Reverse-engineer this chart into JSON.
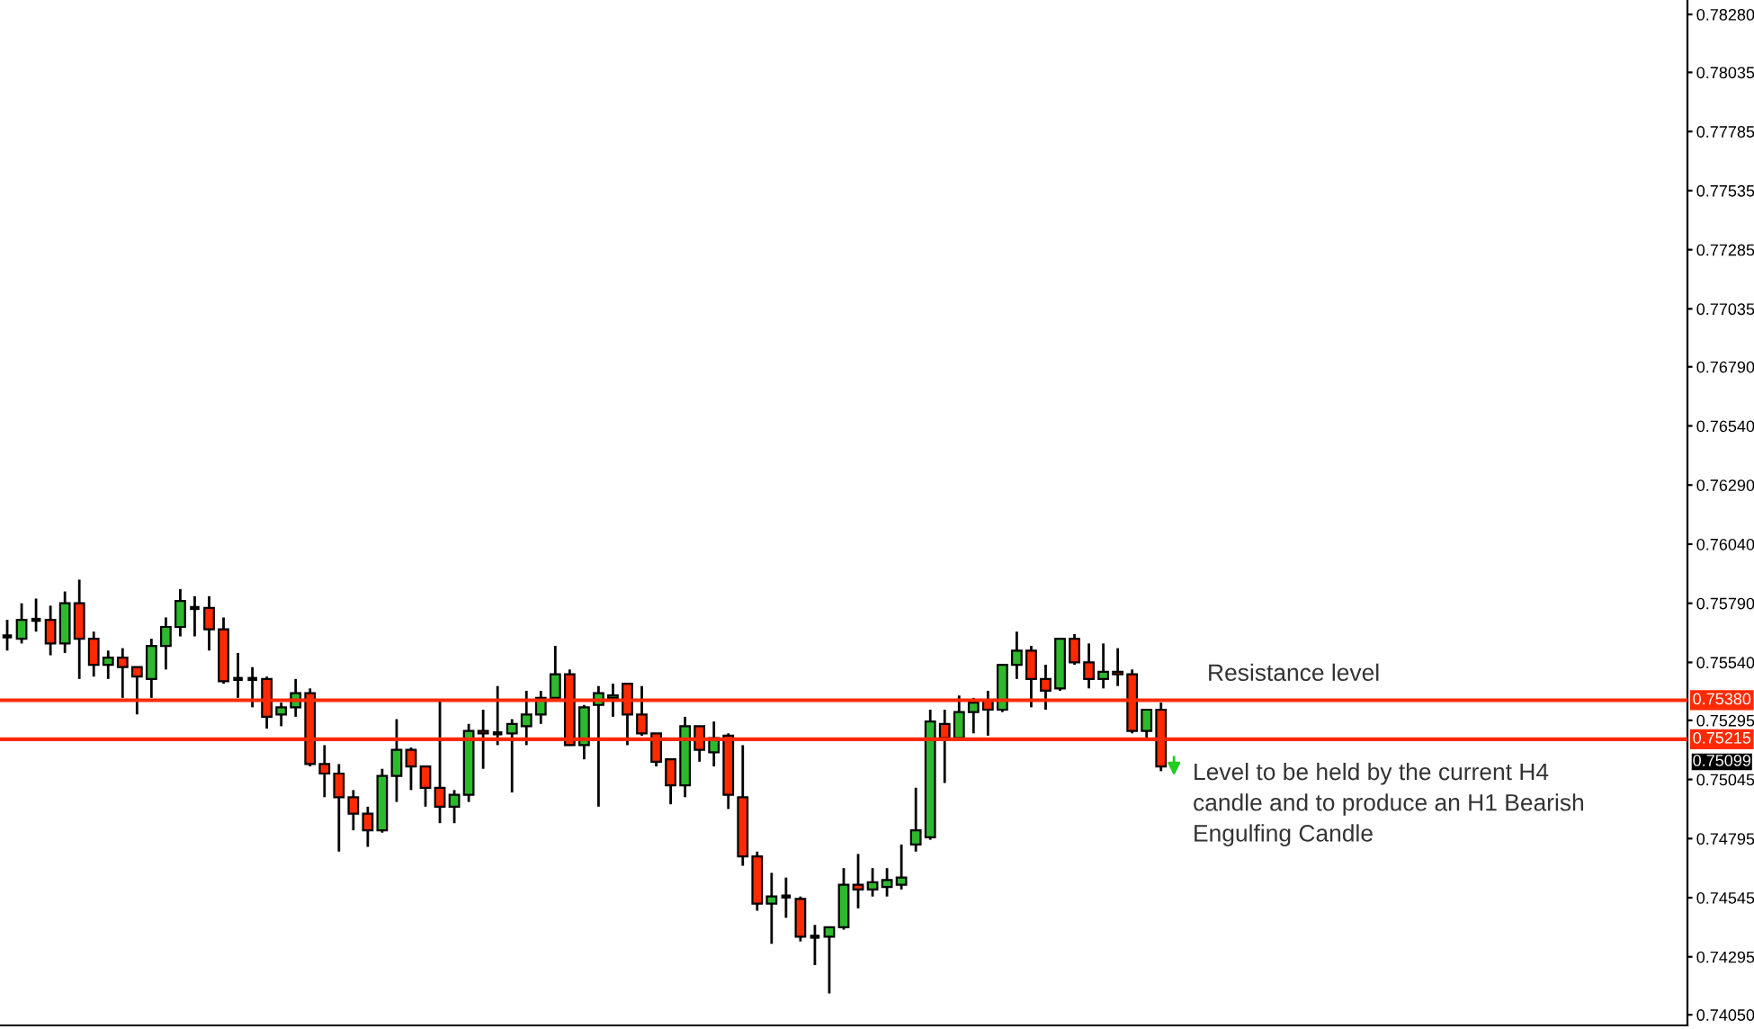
{
  "chart_data": {
    "type": "candlestick",
    "categories": [
      null,
      null,
      null,
      null,
      null,
      null,
      null,
      null,
      null,
      null,
      null,
      null,
      null,
      null,
      null,
      null,
      null,
      null,
      null,
      null,
      null,
      null,
      null,
      null,
      null,
      null,
      null,
      null,
      null,
      null,
      null,
      null,
      null,
      null,
      null,
      null,
      null,
      null,
      null,
      null,
      null,
      null,
      null,
      null,
      null,
      null,
      null,
      null,
      null,
      null,
      null,
      null,
      null,
      null,
      null,
      null,
      null,
      null,
      null,
      null,
      null,
      null,
      null,
      null,
      null,
      null,
      null,
      null,
      null,
      null,
      null,
      null,
      null,
      null,
      null,
      null,
      null,
      null,
      null,
      null,
      null,
      null,
      null,
      null,
      null,
      null,
      null,
      null,
      null,
      null,
      null,
      null,
      null,
      null,
      null,
      null,
      null,
      null,
      null,
      null,
      null,
      null,
      null,
      null,
      null,
      null,
      null,
      null,
      null,
      null,
      null,
      null,
      null,
      null,
      null,
      null,
      null
    ],
    "ohlc": [
      [
        0.7565,
        0.7572,
        0.7559,
        0.7565
      ],
      [
        0.7564,
        0.7579,
        0.7562,
        0.7572
      ],
      [
        0.7572,
        0.7581,
        0.7567,
        0.7572
      ],
      [
        0.7572,
        0.7578,
        0.7557,
        0.7562
      ],
      [
        0.7562,
        0.7584,
        0.7558,
        0.7579
      ],
      [
        0.7579,
        0.7589,
        0.7547,
        0.7564
      ],
      [
        0.7564,
        0.7567,
        0.7548,
        0.7553
      ],
      [
        0.7553,
        0.7559,
        0.7547,
        0.7556
      ],
      [
        0.7556,
        0.756,
        0.7539,
        0.7552
      ],
      [
        0.7552,
        0.7552,
        0.7532,
        0.7548
      ],
      [
        0.7547,
        0.7564,
        0.7539,
        0.7561
      ],
      [
        0.7561,
        0.7573,
        0.7551,
        0.7569
      ],
      [
        0.7569,
        0.7585,
        0.7565,
        0.758
      ],
      [
        0.7577,
        0.7582,
        0.7565,
        0.7577
      ],
      [
        0.7577,
        0.7582,
        0.7559,
        0.7568
      ],
      [
        0.7568,
        0.7573,
        0.7545,
        0.7546
      ],
      [
        0.7547,
        0.7558,
        0.7539,
        0.7547
      ],
      [
        0.7547,
        0.7552,
        0.7535,
        0.7547
      ],
      [
        0.7547,
        0.7548,
        0.7526,
        0.7531
      ],
      [
        0.7532,
        0.7537,
        0.7527,
        0.7535
      ],
      [
        0.7535,
        0.7547,
        0.7531,
        0.7541
      ],
      [
        0.7541,
        0.7543,
        0.751,
        0.7511
      ],
      [
        0.7511,
        0.7519,
        0.7497,
        0.7507
      ],
      [
        0.7507,
        0.7511,
        0.7474,
        0.7497
      ],
      [
        0.7497,
        0.75,
        0.7483,
        0.749
      ],
      [
        0.749,
        0.7493,
        0.7476,
        0.7483
      ],
      [
        0.7483,
        0.7509,
        0.7482,
        0.7506
      ],
      [
        0.7506,
        0.753,
        0.7495,
        0.7517
      ],
      [
        0.7517,
        0.7518,
        0.75,
        0.751
      ],
      [
        0.751,
        0.751,
        0.7493,
        0.7501
      ],
      [
        0.7501,
        0.7538,
        0.7486,
        0.7493
      ],
      [
        0.7493,
        0.75,
        0.7486,
        0.7498
      ],
      [
        0.7498,
        0.7528,
        0.7495,
        0.7525
      ],
      [
        0.7525,
        0.7534,
        0.7509,
        0.7524
      ],
      [
        0.7524,
        0.7544,
        0.7519,
        0.7524
      ],
      [
        0.7524,
        0.753,
        0.7499,
        0.7528
      ],
      [
        0.7527,
        0.7542,
        0.7519,
        0.7532
      ],
      [
        0.7532,
        0.7542,
        0.7528,
        0.7539
      ],
      [
        0.7539,
        0.7561,
        0.7539,
        0.7549
      ],
      [
        0.7549,
        0.7551,
        0.7519,
        0.7519
      ],
      [
        0.7519,
        0.7536,
        0.7513,
        0.7535
      ],
      [
        0.7536,
        0.7544,
        0.7493,
        0.7541
      ],
      [
        0.7539,
        0.7545,
        0.7531,
        0.754
      ],
      [
        0.7545,
        0.7545,
        0.7519,
        0.7532
      ],
      [
        0.7532,
        0.7544,
        0.7523,
        0.7524
      ],
      [
        0.7524,
        0.7524,
        0.751,
        0.7512
      ],
      [
        0.7513,
        0.7513,
        0.7494,
        0.7502
      ],
      [
        0.7502,
        0.7531,
        0.7497,
        0.7527
      ],
      [
        0.7527,
        0.7527,
        0.7512,
        0.7517
      ],
      [
        0.7516,
        0.7529,
        0.751,
        0.7522
      ],
      [
        0.7523,
        0.7524,
        0.7492,
        0.7498
      ],
      [
        0.7497,
        0.7519,
        0.7468,
        0.7472
      ],
      [
        0.7472,
        0.7474,
        0.7449,
        0.7452
      ],
      [
        0.7452,
        0.7465,
        0.7435,
        0.7455
      ],
      [
        0.7455,
        0.7463,
        0.7446,
        0.7455
      ],
      [
        0.7454,
        0.7455,
        0.7436,
        0.7438
      ],
      [
        0.7438,
        0.7443,
        0.7426,
        0.7438
      ],
      [
        0.7438,
        0.7442,
        0.7414,
        0.7442
      ],
      [
        0.7442,
        0.7467,
        0.7441,
        0.746
      ],
      [
        0.746,
        0.7473,
        0.745,
        0.7458
      ],
      [
        0.7458,
        0.7467,
        0.7455,
        0.7461
      ],
      [
        0.7459,
        0.7467,
        0.7455,
        0.7462
      ],
      [
        0.746,
        0.7477,
        0.7458,
        0.7463
      ],
      [
        0.7477,
        0.7501,
        0.7474,
        0.7483
      ],
      [
        0.748,
        0.7534,
        0.7479,
        0.7529
      ],
      [
        0.7528,
        0.7534,
        0.7503,
        0.7522
      ],
      [
        0.7522,
        0.754,
        0.7522,
        0.7533
      ],
      [
        0.7533,
        0.7539,
        0.7524,
        0.7537
      ],
      [
        0.7538,
        0.7542,
        0.7523,
        0.7534
      ],
      [
        0.7534,
        0.7553,
        0.7533,
        0.7553
      ],
      [
        0.7553,
        0.7567,
        0.7547,
        0.7559
      ],
      [
        0.7559,
        0.7561,
        0.7535,
        0.7547
      ],
      [
        0.7547,
        0.7553,
        0.7534,
        0.7542
      ],
      [
        0.7543,
        0.7564,
        0.7542,
        0.7564
      ],
      [
        0.7564,
        0.7566,
        0.7553,
        0.7554
      ],
      [
        0.7554,
        0.7562,
        0.7543,
        0.7547
      ],
      [
        0.7547,
        0.7562,
        0.7543,
        0.755
      ],
      [
        0.755,
        0.756,
        0.7544,
        0.7549
      ],
      [
        0.7549,
        0.7551,
        0.7524,
        0.7525
      ],
      [
        0.7525,
        0.7534,
        0.7522,
        0.7534
      ],
      [
        0.7534,
        0.7537,
        0.7508,
        0.751
      ],
      null,
      null,
      null,
      null,
      null,
      null,
      null,
      null,
      null,
      null,
      null,
      null,
      null,
      null,
      null,
      null,
      null,
      null,
      null,
      null,
      null,
      null,
      null,
      null,
      null,
      null,
      null,
      null,
      null,
      null,
      null,
      null,
      null,
      null,
      null,
      null
    ],
    "colors": [
      "#000000",
      "#2db92d",
      "#000000",
      "#ff2a00",
      "#2db92d",
      "#ff2a00",
      "#ff2a00",
      "#2db92d",
      "#ff2a00",
      "#ff2a00",
      "#2db92d",
      "#2db92d",
      "#2db92d",
      "#000000",
      "#ff2a00",
      "#ff2a00",
      "#000000",
      "#000000",
      "#ff2a00",
      "#2db92d",
      "#2db92d",
      "#ff2a00",
      "#ff2a00",
      "#ff2a00",
      "#ff2a00",
      "#ff2a00",
      "#2db92d",
      "#2db92d",
      "#ff2a00",
      "#ff2a00",
      "#ff2a00",
      "#2db92d",
      "#2db92d",
      "#ff2a00",
      "#000000",
      "#2db92d",
      "#2db92d",
      "#2db92d",
      "#2db92d",
      "#ff2a00",
      "#2db92d",
      "#2db92d",
      "#2db92d",
      "#ff2a00",
      "#ff2a00",
      "#ff2a00",
      "#ff2a00",
      "#2db92d",
      "#ff2a00",
      "#2db92d",
      "#ff2a00",
      "#ff2a00",
      "#ff2a00",
      "#2db92d",
      "#000000",
      "#ff2a00",
      "#000000",
      "#2db92d",
      "#2db92d",
      "#ff2a00",
      "#2db92d",
      "#2db92d",
      "#2db92d",
      "#2db92d",
      "#2db92d",
      "#ff2a00",
      "#2db92d",
      "#2db92d",
      "#ff2a00",
      "#2db92d",
      "#2db92d",
      "#ff2a00",
      "#ff2a00",
      "#2db92d",
      "#ff2a00",
      "#ff2a00",
      "#2db92d",
      "#ff2a00",
      "#ff2a00",
      "#2db92d",
      "#ff2a00",
      null,
      null,
      null,
      null,
      null,
      null,
      null,
      null,
      null,
      null,
      null,
      null,
      null,
      null,
      null,
      null,
      null,
      null,
      null,
      null,
      null,
      null,
      null,
      null,
      null,
      null,
      null,
      null,
      null,
      null,
      null,
      null,
      null,
      null,
      null,
      null
    ],
    "ylim": [
      0.74005,
      0.78341
    ],
    "yticks": [
      {
        "value": 0.7828,
        "label": "0.78280"
      },
      {
        "value": 0.78035,
        "label": "0.78035"
      },
      {
        "value": 0.77785,
        "label": "0.77785"
      },
      {
        "value": 0.77535,
        "label": "0.77535"
      },
      {
        "value": 0.77285,
        "label": "0.77285"
      },
      {
        "value": 0.77035,
        "label": "0.77035"
      },
      {
        "value": 0.7679,
        "label": "0.76790"
      },
      {
        "value": 0.7654,
        "label": "0.76540"
      },
      {
        "value": 0.7629,
        "label": "0.76290"
      },
      {
        "value": 0.7604,
        "label": "0.76040"
      },
      {
        "value": 0.7579,
        "label": "0.75790"
      },
      {
        "value": 0.7554,
        "label": "0.75540"
      },
      {
        "value": 0.75295,
        "label": "0.75295"
      },
      {
        "value": 0.75045,
        "label": "0.75045"
      },
      {
        "value": 0.74795,
        "label": "0.74795"
      },
      {
        "value": 0.74545,
        "label": "0.74545"
      },
      {
        "value": 0.74295,
        "label": "0.74295"
      },
      {
        "value": 0.7405,
        "label": "0.74050"
      }
    ],
    "ref_lines": [
      {
        "axis": "y",
        "value": 0.7538,
        "label": "0.75380",
        "color": "#ff2a00",
        "line_style": "solid"
      },
      {
        "axis": "y",
        "value": 0.75215,
        "label": "0.75215",
        "color": "#ff2a00",
        "line_style": "solid"
      }
    ],
    "annotations": [
      "0.75099",
      "Resistance level",
      "Level to be held by the current H4\ncandle and to produce an H1 Bearish\nEngulfing Candle"
    ],
    "tick_labels": "y",
    "grid": false,
    "legend": false
  }
}
